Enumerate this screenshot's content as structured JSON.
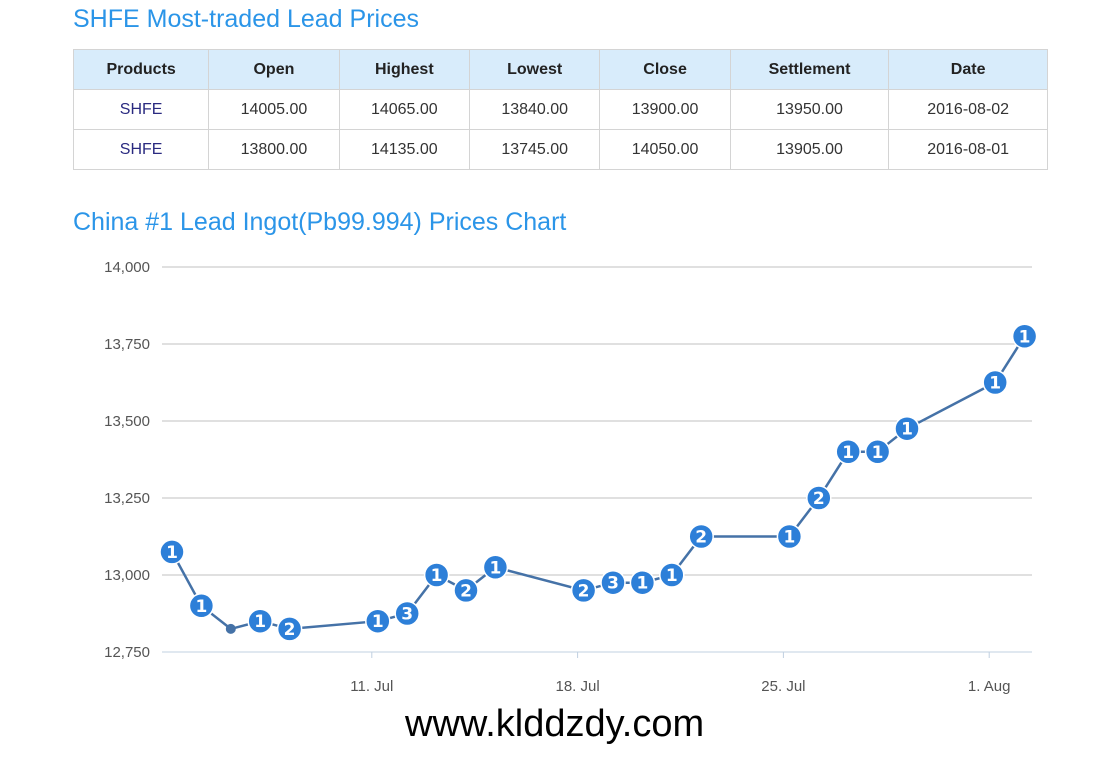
{
  "table_title": "SHFE Most-traded Lead Prices",
  "table": {
    "headers": [
      "Products",
      "Open",
      "Highest",
      "Lowest",
      "Close",
      "Settlement",
      "Date"
    ],
    "rows": [
      [
        "SHFE",
        "14005.00",
        "14065.00",
        "13840.00",
        "13900.00",
        "13950.00",
        "2016-08-02"
      ],
      [
        "SHFE",
        "13800.00",
        "14135.00",
        "13745.00",
        "14050.00",
        "13905.00",
        "2016-08-01"
      ]
    ]
  },
  "chart_title": "China #1 Lead Ingot(Pb99.994) Prices Chart",
  "watermark": "www.klddzdy.com",
  "chart_data": {
    "type": "line",
    "ylim": [
      12750,
      14000
    ],
    "yticks": [
      "12,750",
      "13,000",
      "13,250",
      "13,500",
      "13,750",
      "14,000"
    ],
    "ytick_values": [
      12750,
      13000,
      13250,
      13500,
      13750,
      14000
    ],
    "xticks": [
      {
        "label": "11. Jul",
        "date": "2016-07-11"
      },
      {
        "label": "18. Jul",
        "date": "2016-07-18"
      },
      {
        "label": "25. Jul",
        "date": "2016-07-25"
      },
      {
        "label": "1. Aug",
        "date": "2016-08-01"
      }
    ],
    "grid": true,
    "line_color": "#4572a7",
    "marker_color": "#2d7fd8",
    "points": [
      {
        "date": "2016-07-04",
        "value": 13075,
        "label": "1"
      },
      {
        "date": "2016-07-05",
        "value": 12900,
        "label": "1"
      },
      {
        "date": "2016-07-06",
        "value": 12825,
        "label": ""
      },
      {
        "date": "2016-07-07",
        "value": 12850,
        "label": "1"
      },
      {
        "date": "2016-07-08",
        "value": 12825,
        "label": "2"
      },
      {
        "date": "2016-07-11",
        "value": 12850,
        "label": "1"
      },
      {
        "date": "2016-07-12",
        "value": 12875,
        "label": "3"
      },
      {
        "date": "2016-07-13",
        "value": 13000,
        "label": "1"
      },
      {
        "date": "2016-07-14",
        "value": 12950,
        "label": "2"
      },
      {
        "date": "2016-07-15",
        "value": 13025,
        "label": "1"
      },
      {
        "date": "2016-07-18",
        "value": 12950,
        "label": "2"
      },
      {
        "date": "2016-07-19",
        "value": 12975,
        "label": "3"
      },
      {
        "date": "2016-07-20",
        "value": 12975,
        "label": "1"
      },
      {
        "date": "2016-07-21",
        "value": 13000,
        "label": "1"
      },
      {
        "date": "2016-07-22",
        "value": 13125,
        "label": "2"
      },
      {
        "date": "2016-07-25",
        "value": 13125,
        "label": "1"
      },
      {
        "date": "2016-07-26",
        "value": 13250,
        "label": "2"
      },
      {
        "date": "2016-07-27",
        "value": 13400,
        "label": "1"
      },
      {
        "date": "2016-07-28",
        "value": 13400,
        "label": "1"
      },
      {
        "date": "2016-07-29",
        "value": 13475,
        "label": "1"
      },
      {
        "date": "2016-08-01",
        "value": 13625,
        "label": "1"
      },
      {
        "date": "2016-08-02",
        "value": 13775,
        "label": "1"
      }
    ]
  }
}
